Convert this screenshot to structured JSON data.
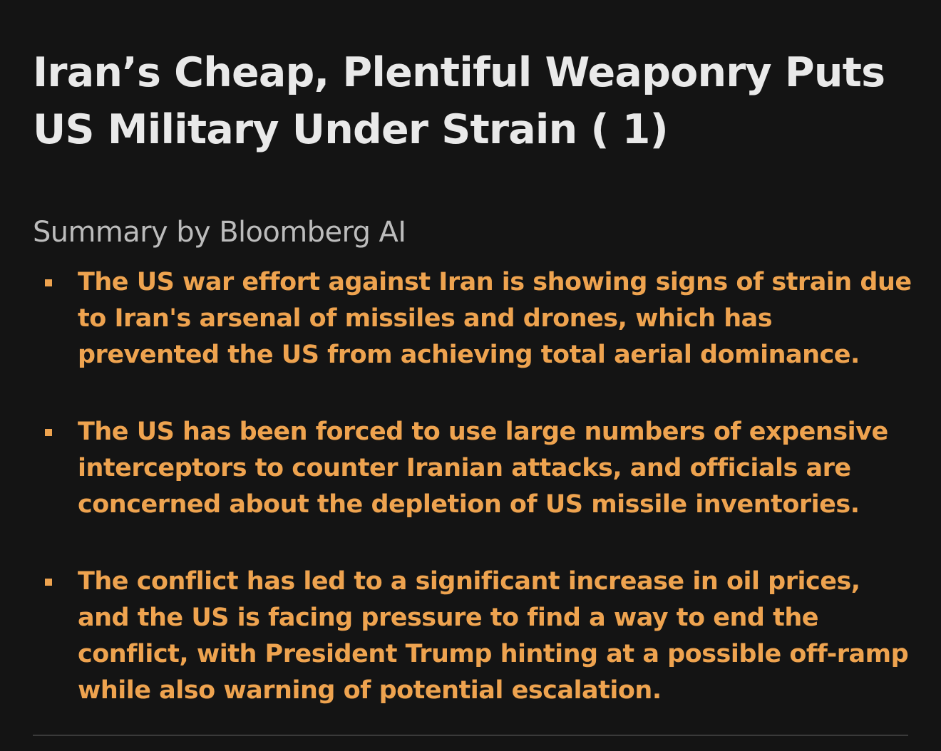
{
  "article": {
    "headline": "Iran’s Cheap, Plentiful Weaponry Puts US Military Under Strain ( 1)",
    "summary_label": "Summary by Bloomberg AI",
    "bullets": [
      "The US war effort against Iran is showing signs of strain due to Iran's arsenal of missiles and drones, which has prevented the US from achieving total aerial dominance.",
      "The US has been forced to use large numbers of expensive interceptors to counter Iranian attacks, and officials are concerned about the depletion of US missile inventories.",
      "The conflict has led to a significant increase in oil prices, and the US is facing pressure to find a way to end the conflict, with President Trump hinting at a possible off-ramp while also warning of potential escalation."
    ]
  },
  "colors": {
    "background": "#141414",
    "headline": "#e9e9e9",
    "summary_label": "#bcbcbc",
    "bullet_text": "#eea34f",
    "divider": "#3a3a3a"
  }
}
